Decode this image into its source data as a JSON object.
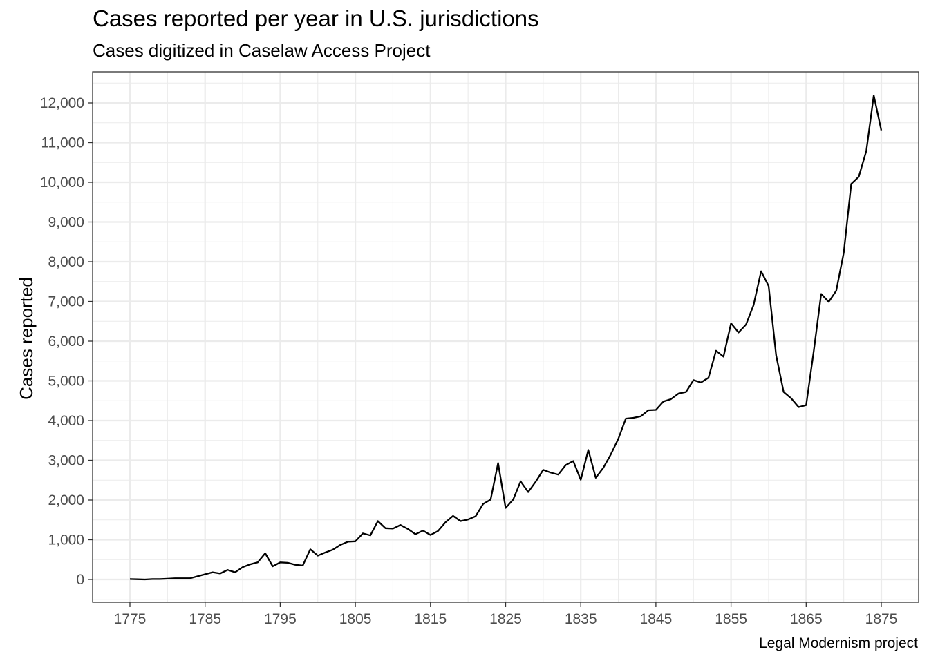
{
  "chart_data": {
    "type": "line",
    "title": "Cases reported per year in U.S. jurisdictions",
    "subtitle": "Cases digitized in Caselaw Access Project",
    "caption": "Legal Modernism project",
    "xlabel": "",
    "ylabel": "Cases reported",
    "xlim": [
      1774,
      1880
    ],
    "ylim": [
      -550,
      12780
    ],
    "x_ticks": [
      1775,
      1785,
      1795,
      1805,
      1815,
      1825,
      1835,
      1845,
      1855,
      1865,
      1875
    ],
    "x_tick_labels": [
      "1775",
      "1785",
      "1795",
      "1805",
      "1815",
      "1825",
      "1835",
      "1845",
      "1855",
      "1865",
      "1875"
    ],
    "y_ticks": [
      0,
      1000,
      2000,
      3000,
      4000,
      5000,
      6000,
      7000,
      8000,
      9000,
      10000,
      11000,
      12000
    ],
    "y_tick_labels": [
      "0",
      "1,000",
      "2,000",
      "3,000",
      "4,000",
      "5,000",
      "6,000",
      "7,000",
      "8,000",
      "9,000",
      "10,000",
      "11,000",
      "12,000"
    ],
    "grid": true,
    "line_color": "#000000",
    "series": [
      {
        "x": [
          1775,
          1776,
          1777,
          1778,
          1779,
          1780,
          1781,
          1782,
          1783,
          1784,
          1785,
          1786,
          1787,
          1788,
          1789,
          1790,
          1791,
          1792,
          1793,
          1794,
          1795,
          1796,
          1797,
          1798,
          1799,
          1800,
          1801,
          1802,
          1803,
          1804,
          1805,
          1806,
          1807,
          1808,
          1809,
          1810,
          1811,
          1812,
          1813,
          1814,
          1815,
          1816,
          1817,
          1818,
          1819,
          1820,
          1821,
          1822,
          1823,
          1824,
          1825,
          1826,
          1827,
          1828,
          1829,
          1830,
          1831,
          1832,
          1833,
          1834,
          1835,
          1836,
          1837,
          1838,
          1839,
          1840,
          1841,
          1842,
          1843,
          1844,
          1845,
          1846,
          1847,
          1848,
          1849,
          1850,
          1851,
          1852,
          1853,
          1854,
          1855,
          1856,
          1857,
          1858,
          1859,
          1860,
          1861,
          1862,
          1863,
          1864,
          1865,
          1866,
          1867,
          1868,
          1869,
          1870,
          1871,
          1872,
          1873,
          1874,
          1875
        ],
        "values": [
          10,
          5,
          0,
          10,
          10,
          20,
          30,
          30,
          30,
          80,
          130,
          180,
          150,
          240,
          180,
          310,
          380,
          430,
          660,
          330,
          430,
          420,
          370,
          350,
          760,
          600,
          680,
          750,
          870,
          950,
          960,
          1160,
          1110,
          1470,
          1290,
          1280,
          1370,
          1270,
          1140,
          1230,
          1120,
          1220,
          1440,
          1600,
          1470,
          1510,
          1590,
          1900,
          2010,
          2930,
          1800,
          2010,
          2470,
          2200,
          2460,
          2760,
          2690,
          2640,
          2880,
          2980,
          2510,
          3260,
          2560,
          2810,
          3150,
          3540,
          4050,
          4070,
          4110,
          4260,
          4270,
          4480,
          4540,
          4680,
          4720,
          5020,
          4960,
          5080,
          5760,
          5610,
          6450,
          6220,
          6420,
          6910,
          7760,
          7390,
          5650,
          4720,
          4560,
          4340,
          4390,
          5740,
          7190,
          6990,
          7270,
          8230,
          9960,
          10140,
          10790,
          12190,
          11310
        ]
      }
    ]
  }
}
